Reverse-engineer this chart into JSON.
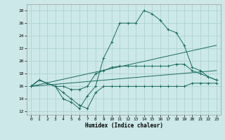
{
  "xlabel": "Humidex (Indice chaleur)",
  "bg_color": "#cce8e8",
  "line_color": "#1a6b60",
  "grid_color": "#aacfcf",
  "xlim": [
    -0.5,
    23.5
  ],
  "ylim": [
    11.5,
    29
  ],
  "xticks": [
    0,
    1,
    2,
    3,
    4,
    5,
    6,
    7,
    8,
    9,
    10,
    11,
    12,
    13,
    14,
    15,
    16,
    17,
    18,
    19,
    20,
    21,
    22,
    23
  ],
  "yticks": [
    12,
    14,
    16,
    18,
    20,
    22,
    24,
    26,
    28
  ],
  "series": [
    {
      "x": [
        0,
        1,
        2,
        3,
        4,
        5,
        6,
        7,
        8,
        9,
        10,
        11,
        12,
        13,
        14,
        15,
        16,
        17,
        18,
        19,
        20,
        21,
        22,
        23
      ],
      "y": [
        16,
        17,
        16.5,
        16,
        15,
        14,
        13,
        12.5,
        15,
        16,
        16,
        16,
        16,
        16,
        16,
        16,
        16,
        16,
        16,
        16,
        16.5,
        16.5,
        16.5,
        16.5
      ],
      "marker": true
    },
    {
      "x": [
        0,
        1,
        2,
        3,
        4,
        5,
        6,
        7,
        8,
        9,
        10,
        11,
        12,
        13,
        14,
        15,
        16,
        17,
        18,
        19,
        20,
        21,
        22,
        23
      ],
      "y": [
        16,
        17,
        16.5,
        16,
        16,
        15.5,
        15.5,
        16,
        18,
        18.5,
        19,
        19.2,
        19.2,
        19.2,
        19.2,
        19.2,
        19.2,
        19.2,
        19.5,
        19.5,
        18.5,
        18,
        17.5,
        17
      ],
      "marker": true
    },
    {
      "x": [
        0,
        23
      ],
      "y": [
        16,
        18.5
      ],
      "marker": false
    },
    {
      "x": [
        0,
        23
      ],
      "y": [
        16,
        22.5
      ],
      "marker": false
    },
    {
      "x": [
        0,
        1,
        2,
        3,
        4,
        5,
        6,
        7,
        8,
        9,
        10,
        11,
        12,
        13,
        14,
        15,
        16,
        17,
        18,
        19,
        20,
        21,
        22,
        23
      ],
      "y": [
        16,
        17,
        16.5,
        16,
        14,
        13.5,
        12.5,
        14.5,
        16,
        20.5,
        23,
        26,
        26,
        26,
        28,
        27.5,
        26.5,
        25,
        24.5,
        22.5,
        19,
        18.5,
        17.5,
        17
      ],
      "marker": true
    }
  ]
}
